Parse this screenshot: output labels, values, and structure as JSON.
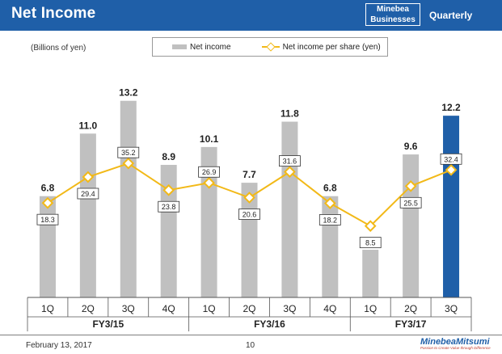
{
  "header": {
    "title": "Net Income",
    "badge_line1": "Minebea",
    "badge_line2": "Businesses",
    "period": "Quarterly"
  },
  "unit_label": "(Billions of yen)",
  "legend": {
    "bar_label": "Net income",
    "line_label": "Net income per share (yen)"
  },
  "chart_data": {
    "type": "bar",
    "categories": [
      "1Q",
      "2Q",
      "3Q",
      "4Q",
      "1Q",
      "2Q",
      "3Q",
      "4Q",
      "1Q",
      "2Q",
      "3Q"
    ],
    "groups": [
      {
        "label": "FY3/15",
        "span": 4
      },
      {
        "label": "FY3/16",
        "span": 4
      },
      {
        "label": "FY3/17",
        "span": 3
      }
    ],
    "series": [
      {
        "name": "Net income",
        "type": "bar",
        "values": [
          6.8,
          11.0,
          13.2,
          8.9,
          10.1,
          7.7,
          11.8,
          6.8,
          3.2,
          9.6,
          12.2
        ]
      },
      {
        "name": "Net income per share (yen)",
        "type": "line",
        "values": [
          18.3,
          29.4,
          35.2,
          23.8,
          26.9,
          20.6,
          31.6,
          18.2,
          8.5,
          25.5,
          32.4
        ]
      }
    ],
    "highlight_index": 10,
    "colors": {
      "bar": "#c0c0c0",
      "highlight": "#1f5fa8",
      "line": "#f2b918",
      "marker_fill": "#ffffff"
    },
    "bar_ylim": [
      0,
      14
    ],
    "line_ylim": [
      -22,
      67
    ]
  },
  "footer": {
    "date": "February 13, 2017",
    "page": "10",
    "logo": "MinebeaMitsumi",
    "tagline": "Passion to Create Value through Difference"
  }
}
